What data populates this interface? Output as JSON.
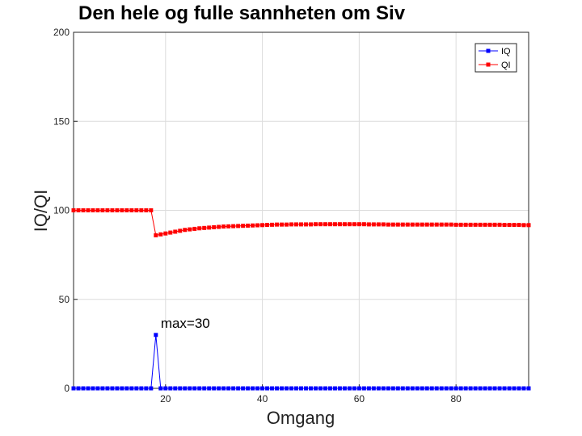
{
  "chart_data": {
    "type": "line",
    "title": "Den hele og fulle sannheten om Siv",
    "xlabel": "Omgang",
    "ylabel": "IQ/QI",
    "xlim": [
      1,
      95
    ],
    "ylim": [
      0,
      200
    ],
    "xticks": [
      20,
      40,
      60,
      80
    ],
    "yticks": [
      0,
      50,
      100,
      150,
      200
    ],
    "grid": true,
    "legend_position": "top-right",
    "annotation": {
      "text": "max=30",
      "x": 18,
      "y": 30
    },
    "series": [
      {
        "name": "IQ",
        "color": "#0000ff",
        "x": [
          1,
          2,
          3,
          4,
          5,
          6,
          7,
          8,
          9,
          10,
          11,
          12,
          13,
          14,
          15,
          16,
          17,
          18,
          19,
          20,
          21,
          22,
          23,
          24,
          25,
          26,
          27,
          28,
          29,
          30,
          31,
          32,
          33,
          34,
          35,
          36,
          37,
          38,
          39,
          40,
          41,
          42,
          43,
          44,
          45,
          46,
          47,
          48,
          49,
          50,
          51,
          52,
          53,
          54,
          55,
          56,
          57,
          58,
          59,
          60,
          61,
          62,
          63,
          64,
          65,
          66,
          67,
          68,
          69,
          70,
          71,
          72,
          73,
          74,
          75,
          76,
          77,
          78,
          79,
          80,
          81,
          82,
          83,
          84,
          85,
          86,
          87,
          88,
          89,
          90,
          91,
          92,
          93,
          94,
          95
        ],
        "values": [
          0,
          0,
          0,
          0,
          0,
          0,
          0,
          0,
          0,
          0,
          0,
          0,
          0,
          0,
          0,
          0,
          0,
          30,
          0,
          0,
          0,
          0,
          0,
          0,
          0,
          0,
          0,
          0,
          0,
          0,
          0,
          0,
          0,
          0,
          0,
          0,
          0,
          0,
          0,
          0,
          0,
          0,
          0,
          0,
          0,
          0,
          0,
          0,
          0,
          0,
          0,
          0,
          0,
          0,
          0,
          0,
          0,
          0,
          0,
          0,
          0,
          0,
          0,
          0,
          0,
          0,
          0,
          0,
          0,
          0,
          0,
          0,
          0,
          0,
          0,
          0,
          0,
          0,
          0,
          0,
          0,
          0,
          0,
          0,
          0,
          0,
          0,
          0,
          0,
          0,
          0,
          0,
          0,
          0,
          0
        ]
      },
      {
        "name": "QI",
        "color": "#ff0000",
        "x": [
          1,
          2,
          3,
          4,
          5,
          6,
          7,
          8,
          9,
          10,
          11,
          12,
          13,
          14,
          15,
          16,
          17,
          18,
          19,
          20,
          21,
          22,
          23,
          24,
          25,
          26,
          27,
          28,
          29,
          30,
          31,
          32,
          33,
          34,
          35,
          36,
          37,
          38,
          39,
          40,
          41,
          42,
          43,
          44,
          45,
          46,
          47,
          48,
          49,
          50,
          51,
          52,
          53,
          54,
          55,
          56,
          57,
          58,
          59,
          60,
          61,
          62,
          63,
          64,
          65,
          66,
          67,
          68,
          69,
          70,
          71,
          72,
          73,
          74,
          75,
          76,
          77,
          78,
          79,
          80,
          81,
          82,
          83,
          84,
          85,
          86,
          87,
          88,
          89,
          90,
          91,
          92,
          93,
          94,
          95
        ],
        "values": [
          100,
          100,
          100,
          100,
          100,
          100,
          100,
          100,
          100,
          100,
          100,
          100,
          100,
          100,
          100,
          100,
          100,
          86,
          86.5,
          87,
          87.5,
          88,
          88.5,
          89,
          89.3,
          89.6,
          89.9,
          90.1,
          90.3,
          90.5,
          90.7,
          90.9,
          91,
          91.1,
          91.2,
          91.3,
          91.4,
          91.5,
          91.6,
          91.7,
          91.8,
          91.9,
          92,
          92,
          92,
          92.1,
          92.1,
          92.1,
          92.1,
          92.1,
          92.2,
          92.2,
          92.2,
          92.2,
          92.2,
          92.2,
          92.2,
          92.2,
          92.2,
          92.2,
          92.2,
          92.1,
          92.1,
          92.1,
          92.1,
          92,
          92,
          92,
          92,
          92,
          92,
          92,
          92,
          92,
          92,
          92,
          92,
          92,
          92,
          91.9,
          91.9,
          91.9,
          91.9,
          91.9,
          91.9,
          91.9,
          91.9,
          91.9,
          91.9,
          91.8,
          91.8,
          91.8,
          91.8,
          91.7,
          91.7
        ]
      }
    ]
  }
}
